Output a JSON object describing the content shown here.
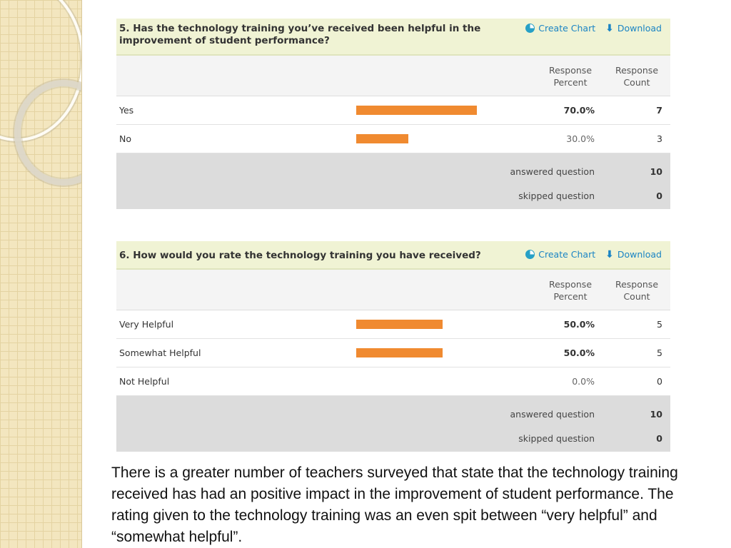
{
  "actions": {
    "create_chart": "Create Chart",
    "download": "Download"
  },
  "columns": {
    "response_percent": "Response\nPercent",
    "response_count": "Response\nCount"
  },
  "q5": {
    "question": "5. Has the technology training you’ve received been helpful in the improvement of student performance?",
    "rows": [
      {
        "label": "Yes",
        "percent_text": "70.0%",
        "percent": 70.0,
        "count": "7"
      },
      {
        "label": "No",
        "percent_text": "30.0%",
        "percent": 30.0,
        "count": "3"
      }
    ],
    "answered_label": "answered question",
    "answered": "10",
    "skipped_label": "skipped question",
    "skipped": "0"
  },
  "q6": {
    "question": "6. How would you rate the technology training you have received?",
    "rows": [
      {
        "label": "Very Helpful",
        "percent_text": "50.0%",
        "percent": 50.0,
        "count": "5"
      },
      {
        "label": "Somewhat Helpful",
        "percent_text": "50.0%",
        "percent": 50.0,
        "count": "5"
      },
      {
        "label": "Not Helpful",
        "percent_text": "0.0%",
        "percent": 0.0,
        "count": "0"
      }
    ],
    "answered_label": "answered question",
    "answered": "10",
    "skipped_label": "skipped question",
    "skipped": "0"
  },
  "caption": "There is a greater number of teachers surveyed that state that  the technology training received has had an positive impact in the improvement of student performance. The rating given to the technology training was an even spit between “very helpful” and “somewhat helpful”.",
  "colors": {
    "bar": "#f08a30",
    "header_bg": "#f0f3d4",
    "link": "#1a84c4",
    "summary_bg": "#dcdcdc"
  }
}
